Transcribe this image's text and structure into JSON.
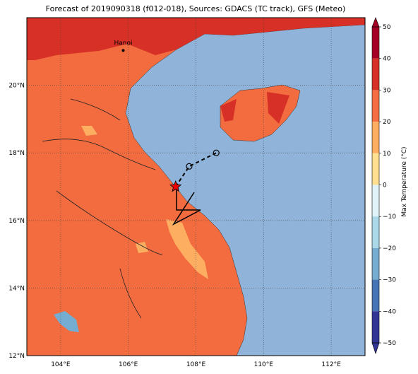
{
  "title": "Forecast of 2019090318 (f012-018), Sources: GDACS (TC track), GFS (Meteo)",
  "lon_range": [
    103,
    113
  ],
  "lat_range": [
    12,
    22
  ],
  "xticks": [
    {
      "value": 104,
      "label": "104°E"
    },
    {
      "value": 106,
      "label": "106°E"
    },
    {
      "value": 108,
      "label": "108°E"
    },
    {
      "value": 110,
      "label": "110°E"
    },
    {
      "value": 112,
      "label": "112°E"
    }
  ],
  "yticks": [
    {
      "value": 12,
      "label": "12°N"
    },
    {
      "value": 14,
      "label": "14°N"
    },
    {
      "value": 16,
      "label": "16°N"
    },
    {
      "value": 18,
      "label": "18°N"
    },
    {
      "value": 20,
      "label": "20°N"
    }
  ],
  "city": {
    "name": "Hanoi",
    "lon": 105.85,
    "lat": 21.03
  },
  "track": {
    "lon": [
      107.4,
      107.8,
      108.6
    ],
    "lat": [
      17.0,
      17.6,
      18.0
    ]
  },
  "colorbar": {
    "label": "Max Temperature (°C)",
    "ticks": [
      {
        "value": 50,
        "label": "50"
      },
      {
        "value": 40,
        "label": "40"
      },
      {
        "value": 30,
        "label": "30"
      },
      {
        "value": 20,
        "label": "20"
      },
      {
        "value": 10,
        "label": "10"
      },
      0,
      {
        "value": -10,
        "label": "−10"
      },
      {
        "value": -20,
        "label": "−20"
      },
      {
        "value": -30,
        "label": "−30"
      },
      {
        "value": -40,
        "label": "−40"
      },
      {
        "value": -50,
        "label": "−50"
      }
    ],
    "colors": [
      "#a50026",
      "#d73027",
      "#f46d43",
      "#fdae61",
      "#fee090",
      "#e0f3f8",
      "#abd9e9",
      "#74add1",
      "#4575b4",
      "#313695"
    ]
  }
}
